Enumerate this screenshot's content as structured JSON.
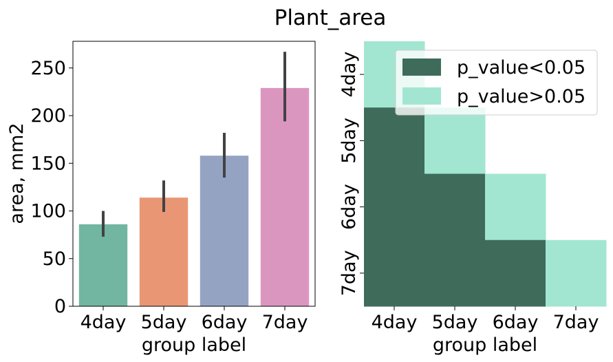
{
  "figure": {
    "title": "Plant_area"
  },
  "chart_data": [
    {
      "type": "bar",
      "xlabel": "group label",
      "ylabel": "area, mm2",
      "ylim": [
        0,
        278
      ],
      "yticks": [
        0,
        50,
        100,
        150,
        200,
        250
      ],
      "categories": [
        "4day",
        "5day",
        "6day",
        "7day"
      ],
      "values": [
        86,
        114,
        158,
        229
      ],
      "error_low": [
        73,
        99,
        135,
        194
      ],
      "error_high": [
        100,
        132,
        182,
        267
      ],
      "colors": [
        "#72b6a1",
        "#e99675",
        "#95a3c3",
        "#db96c0"
      ],
      "error_color": "#424242",
      "grid": false,
      "legend": null
    },
    {
      "type": "heatmap",
      "xlabel": "group label",
      "ylabel": "",
      "x_categories": [
        "4day",
        "5day",
        "6day",
        "7day"
      ],
      "y_categories": [
        "4day",
        "5day",
        "6day",
        "7day"
      ],
      "cells": [
        [
          "p_value>0.05",
          "",
          "",
          ""
        ],
        [
          "p_value<0.05",
          "p_value>0.05",
          "",
          ""
        ],
        [
          "p_value<0.05",
          "p_value<0.05",
          "p_value>0.05",
          ""
        ],
        [
          "p_value<0.05",
          "p_value<0.05",
          "p_value<0.05",
          "p_value>0.05"
        ]
      ],
      "legend": {
        "placement": "top-right",
        "entries": [
          {
            "label": "p_value<0.05",
            "color": "#3f6b5a"
          },
          {
            "label": "p_value>0.05",
            "color": "#a2e6d2"
          }
        ]
      }
    }
  ]
}
